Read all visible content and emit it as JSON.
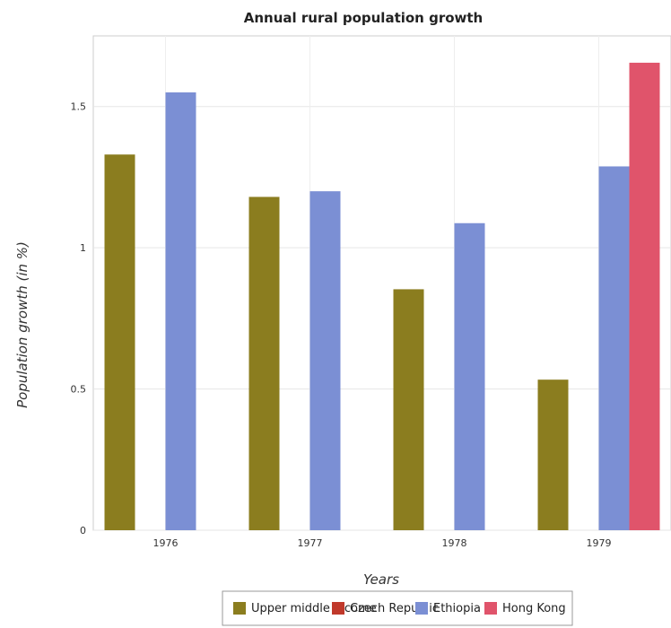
{
  "chart_data": {
    "type": "bar",
    "title": "Annual rural population growth",
    "xlabel": "Years",
    "ylabel": "Population growth (in %)",
    "categories": [
      "1976",
      "1977",
      "1978",
      "1979"
    ],
    "ylim": [
      0,
      1.75
    ],
    "yticks": [
      0,
      0.5,
      1,
      1.5
    ],
    "ytick_labels": [
      "0",
      "0.5",
      "1",
      "1.5"
    ],
    "grid": true,
    "legend_position": "bottom",
    "series": [
      {
        "name": "Upper middle income",
        "color": "#8b7d1f",
        "values": [
          1.33,
          1.18,
          0.853,
          0.533
        ]
      },
      {
        "name": "Czech Republic",
        "color": "#c0392b",
        "values": [
          0,
          0,
          0,
          0
        ]
      },
      {
        "name": "Ethiopia",
        "color": "#7b8fd4",
        "values": [
          1.55,
          1.2,
          1.087,
          1.288
        ]
      },
      {
        "name": "Hong Kong",
        "color": "#e0546b",
        "values": [
          0,
          0,
          0,
          1.655
        ]
      }
    ]
  }
}
